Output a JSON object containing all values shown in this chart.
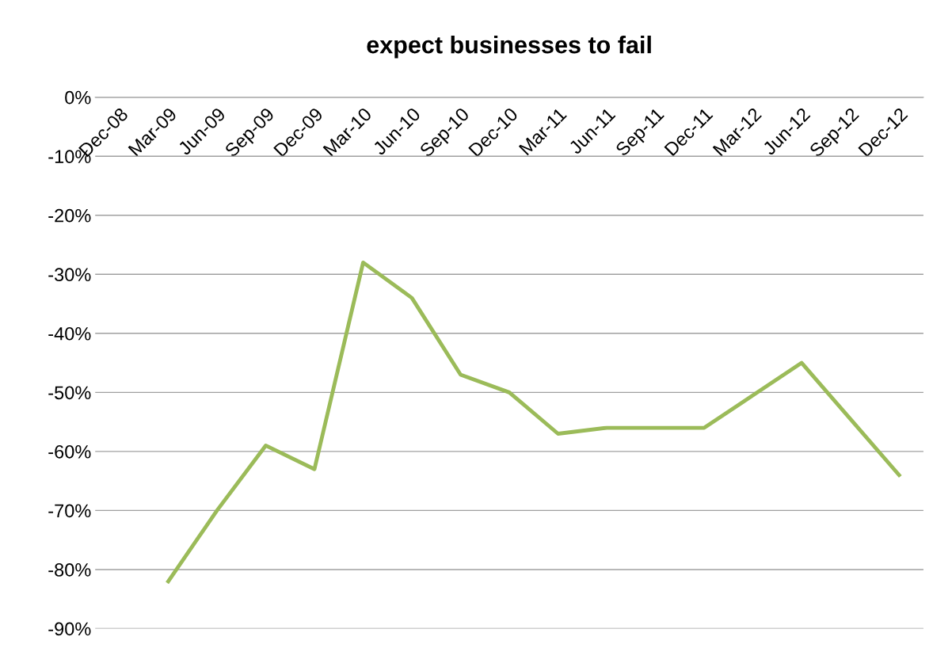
{
  "chart_data": {
    "type": "line",
    "title": "expect businesses to fail",
    "categories": [
      "Dec-08",
      "Mar-09",
      "Jun-09",
      "Sep-09",
      "Dec-09",
      "Mar-10",
      "Jun-10",
      "Sep-10",
      "Dec-10",
      "Mar-11",
      "Jun-11",
      "Sep-11",
      "Dec-11",
      "Mar-12",
      "Jun-12",
      "Sep-12",
      "Dec-12"
    ],
    "series": [
      {
        "color": "#9bbb59",
        "values": [
          null,
          -82,
          -70,
          -59,
          -63,
          -28,
          -34,
          -47,
          -50,
          -57,
          -56,
          -56,
          -56,
          -50.5,
          -45,
          -54.5,
          -64
        ]
      }
    ],
    "ylim": [
      -90,
      0
    ],
    "yticks": [
      {
        "value": 0,
        "label": "0%"
      },
      {
        "value": -10,
        "label": "-10%"
      },
      {
        "value": -20,
        "label": "-20%"
      },
      {
        "value": -30,
        "label": "-30%"
      },
      {
        "value": -40,
        "label": "-40%"
      },
      {
        "value": -50,
        "label": "-50%"
      },
      {
        "value": -60,
        "label": "-60%"
      },
      {
        "value": -70,
        "label": "-70%"
      },
      {
        "value": -80,
        "label": "-80%"
      },
      {
        "value": -90,
        "label": "-90%"
      }
    ],
    "grid": "y",
    "legend": false,
    "marker": "none",
    "line_style": "solid"
  }
}
